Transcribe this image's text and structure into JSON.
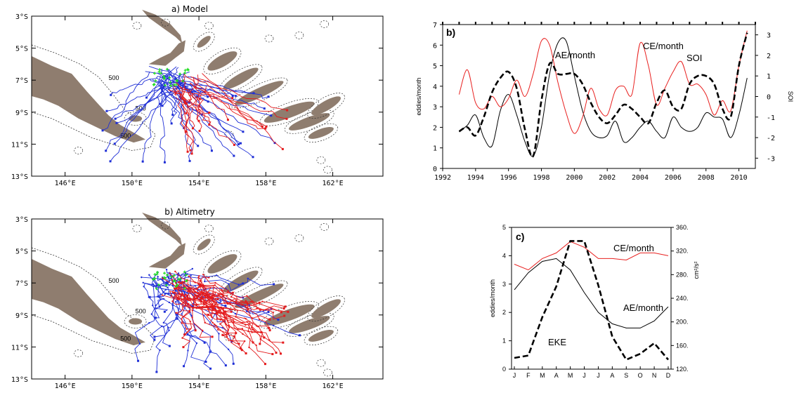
{
  "colors": {
    "land": "#8f7d6f",
    "ae_track": "#1f2fd6",
    "ce_track": "#e41a1c",
    "start_marker": "#22dd22",
    "ce_line": "#e8201f",
    "black": "#000000"
  },
  "maps": [
    {
      "title": "a) Model",
      "lat_ticks": [
        "3°S",
        "5°S",
        "7°S",
        "9°S",
        "11°S",
        "13°S"
      ],
      "lon_ticks": [
        "146°E",
        "150°E",
        "154°E",
        "158°E",
        "162°E"
      ],
      "contour_label": "500"
    },
    {
      "title": "b) Altimetry",
      "lat_ticks": [
        "3°S",
        "5°S",
        "7°S",
        "9°S",
        "11°S",
        "13°S"
      ],
      "lon_ticks": [
        "146°E",
        "150°E",
        "154°E",
        "158°E",
        "162°E"
      ],
      "contour_label": "500"
    }
  ],
  "chart_data": [
    {
      "type": "line",
      "panel_label": "b)",
      "ylabel": "eddies/month",
      "y2label": "SOI",
      "xlim": [
        1992,
        2011
      ],
      "ylim": [
        0,
        7
      ],
      "y2lim": [
        -3.5,
        3.5
      ],
      "x_ticks": [
        "1992",
        "1994",
        "1996",
        "1998",
        "2000",
        "2002",
        "2004",
        "2006",
        "2008",
        "2010"
      ],
      "y_ticks": [
        "0",
        "1",
        "2",
        "3",
        "4",
        "5",
        "6",
        "7"
      ],
      "y2_ticks": [
        "-3",
        "-2",
        "-1",
        "0",
        "1",
        "2",
        "3"
      ],
      "annotations": [
        "AE/month",
        "CE/month",
        "SOI"
      ],
      "series": [
        {
          "name": "AE/month",
          "axis": "left",
          "x": [
            1993.0,
            1993.5,
            1994.0,
            1994.5,
            1995.0,
            1995.5,
            1996.0,
            1996.5,
            1997.0,
            1997.5,
            1998.0,
            1998.5,
            1999.0,
            1999.5,
            2000.0,
            2000.5,
            2001.0,
            2001.5,
            2002.0,
            2002.5,
            2003.0,
            2003.5,
            2004.0,
            2004.5,
            2005.0,
            2005.5,
            2006.0,
            2006.5,
            2007.0,
            2007.5,
            2008.0,
            2008.5,
            2009.0,
            2009.5,
            2010.0,
            2010.5
          ],
          "values": [
            1.8,
            2.1,
            2.6,
            1.5,
            1.1,
            2.8,
            3.6,
            2.6,
            1.3,
            0.6,
            2.0,
            4.6,
            6.1,
            6.2,
            4.5,
            2.8,
            1.8,
            1.5,
            1.6,
            2.3,
            1.3,
            1.5,
            2.0,
            2.3,
            1.8,
            1.5,
            2.5,
            2.0,
            1.8,
            2.0,
            2.7,
            2.5,
            2.4,
            1.5,
            2.6,
            4.4
          ]
        },
        {
          "name": "CE/month",
          "axis": "left",
          "x": [
            1993.0,
            1993.5,
            1994.0,
            1994.5,
            1995.0,
            1995.5,
            1996.0,
            1996.5,
            1997.0,
            1997.5,
            1998.0,
            1998.5,
            1999.0,
            1999.5,
            2000.0,
            2000.5,
            2001.0,
            2001.5,
            2002.0,
            2002.5,
            2003.0,
            2003.5,
            2004.0,
            2004.5,
            2005.0,
            2005.5,
            2006.0,
            2006.5,
            2007.0,
            2007.5,
            2008.0,
            2008.5,
            2009.0,
            2009.5,
            2010.0,
            2010.5
          ],
          "values": [
            3.6,
            4.8,
            3.2,
            2.9,
            3.5,
            3.0,
            3.4,
            4.3,
            3.5,
            4.6,
            6.2,
            6.0,
            4.2,
            2.7,
            1.7,
            2.5,
            3.9,
            2.9,
            2.6,
            3.8,
            4.0,
            3.6,
            6.1,
            5.0,
            3.1,
            3.9,
            4.7,
            5.2,
            4.1,
            4.1,
            3.6,
            2.6,
            3.3,
            2.8,
            5.0,
            6.7
          ]
        },
        {
          "name": "SOI",
          "axis": "right",
          "x": [
            1993.0,
            1993.5,
            1994.0,
            1994.5,
            1995.0,
            1995.5,
            1996.0,
            1996.5,
            1997.0,
            1997.5,
            1998.0,
            1998.5,
            1999.0,
            1999.5,
            2000.0,
            2000.5,
            2001.0,
            2001.5,
            2002.0,
            2002.5,
            2003.0,
            2003.5,
            2004.0,
            2004.5,
            2005.0,
            2005.5,
            2006.0,
            2006.5,
            2007.0,
            2007.5,
            2008.0,
            2008.5,
            2009.0,
            2009.5,
            2010.0,
            2010.5
          ],
          "values": [
            -1.7,
            -1.5,
            -1.9,
            -1.0,
            0.2,
            0.9,
            1.2,
            0.4,
            -1.6,
            -2.9,
            -0.2,
            1.6,
            1.1,
            1.1,
            1.1,
            0.6,
            -0.3,
            -1.0,
            -1.3,
            -0.9,
            -0.4,
            -0.6,
            -1.0,
            -1.3,
            -0.3,
            0.3,
            -0.5,
            -0.6,
            0.6,
            1.0,
            1.0,
            0.6,
            -0.6,
            -1.0,
            1.5,
            3.1
          ]
        }
      ]
    },
    {
      "type": "line",
      "panel_label": "c)",
      "ylabel": "eddies/month",
      "y2label": "cm²/s²",
      "ylim": [
        0,
        5
      ],
      "y2lim": [
        120,
        360
      ],
      "categories": [
        "J",
        "F",
        "M",
        "A",
        "M",
        "J",
        "J",
        "A",
        "S",
        "O",
        "N",
        "D"
      ],
      "y_ticks": [
        "0",
        "1",
        "2",
        "3",
        "4",
        "5"
      ],
      "y2_ticks": [
        "120.",
        "160.",
        "200.",
        "240.",
        "280.",
        "320.",
        "360."
      ],
      "annotations": [
        "CE/month",
        "AE/month",
        "EKE"
      ],
      "series": [
        {
          "name": "CE/month",
          "axis": "left",
          "values": [
            3.7,
            3.5,
            3.9,
            4.1,
            4.5,
            4.3,
            3.9,
            3.9,
            3.85,
            4.1,
            4.1,
            4.0
          ]
        },
        {
          "name": "AE/month",
          "axis": "left",
          "values": [
            2.8,
            3.4,
            3.8,
            3.9,
            3.5,
            2.7,
            2.0,
            1.6,
            1.45,
            1.45,
            1.7,
            2.2
          ]
        },
        {
          "name": "EKE",
          "axis": "right",
          "values": [
            139,
            143,
            208,
            260,
            337,
            337,
            262,
            175,
            136,
            146,
            164,
            136
          ]
        }
      ]
    }
  ]
}
